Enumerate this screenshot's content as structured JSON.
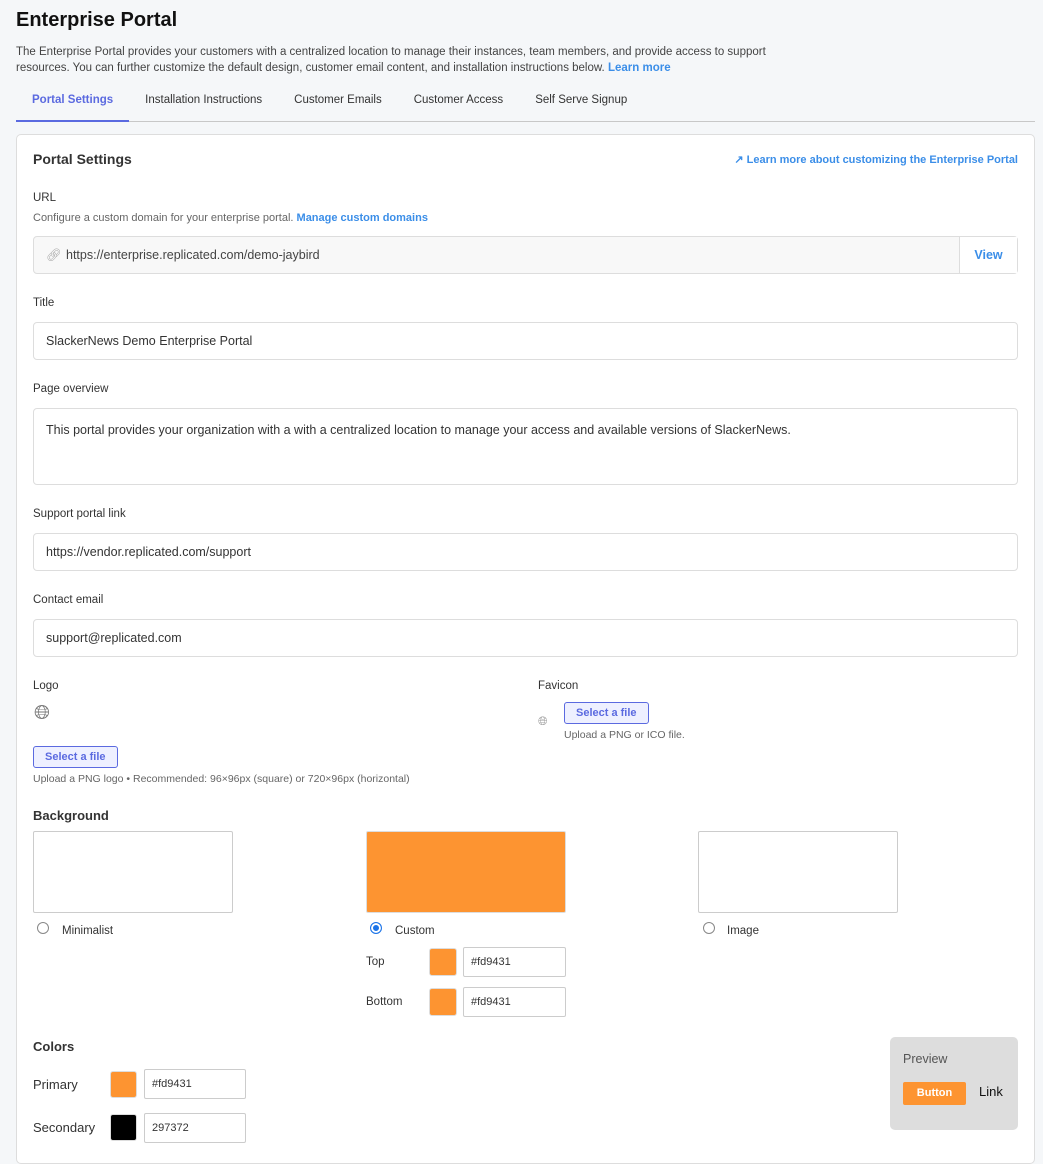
{
  "page": {
    "title": "Enterprise Portal",
    "description": "The Enterprise Portal provides your customers with a centralized location to manage their instances, team members, and provide access to support resources. You can further customize the default design, customer email content, and installation instructions below.",
    "learn_more": "Learn more"
  },
  "tabs": [
    {
      "label": "Portal Settings",
      "active": true
    },
    {
      "label": "Installation Instructions"
    },
    {
      "label": "Customer Emails"
    },
    {
      "label": "Customer Access"
    },
    {
      "label": "Self Serve Signup"
    }
  ],
  "card": {
    "title": "Portal Settings",
    "learn_more_link": "Learn more about customizing the Enterprise Portal"
  },
  "url": {
    "label": "URL",
    "help": "Configure a custom domain for your enterprise portal.",
    "help_link": "Manage custom domains",
    "value": "https://enterprise.replicated.com/demo-jaybird",
    "view": "View"
  },
  "title_field": {
    "label": "Title",
    "value": "SlackerNews Demo Enterprise Portal"
  },
  "overview": {
    "label": "Page overview",
    "value": "This portal provides your organization with a with a centralized location to manage your access and available versions of SlackerNews."
  },
  "support": {
    "label": "Support portal link",
    "value": "https://vendor.replicated.com/support"
  },
  "contact": {
    "label": "Contact email",
    "value": "support@replicated.com"
  },
  "logo": {
    "label": "Logo",
    "button": "Select a file",
    "help": "Upload a PNG logo • Recommended: 96×96px (square) or 720×96px (horizontal)"
  },
  "favicon": {
    "label": "Favicon",
    "button": "Select a file",
    "help": "Upload a PNG or ICO file."
  },
  "background": {
    "label": "Background",
    "options": [
      {
        "label": "Minimalist",
        "selected": false
      },
      {
        "label": "Custom",
        "selected": true,
        "color": "#fd9431"
      },
      {
        "label": "Image",
        "selected": false
      }
    ],
    "top_label": "Top",
    "top": "#fd9431",
    "bottom_label": "Bottom",
    "bottom": "#fd9431"
  },
  "colors": {
    "label": "Colors",
    "primary_label": "Primary",
    "primary": "#fd9431",
    "secondary_label": "Secondary",
    "secondary": "297372",
    "secondary_swatch": "#000000"
  },
  "preview": {
    "label": "Preview",
    "button": "Button",
    "link": "Link"
  }
}
